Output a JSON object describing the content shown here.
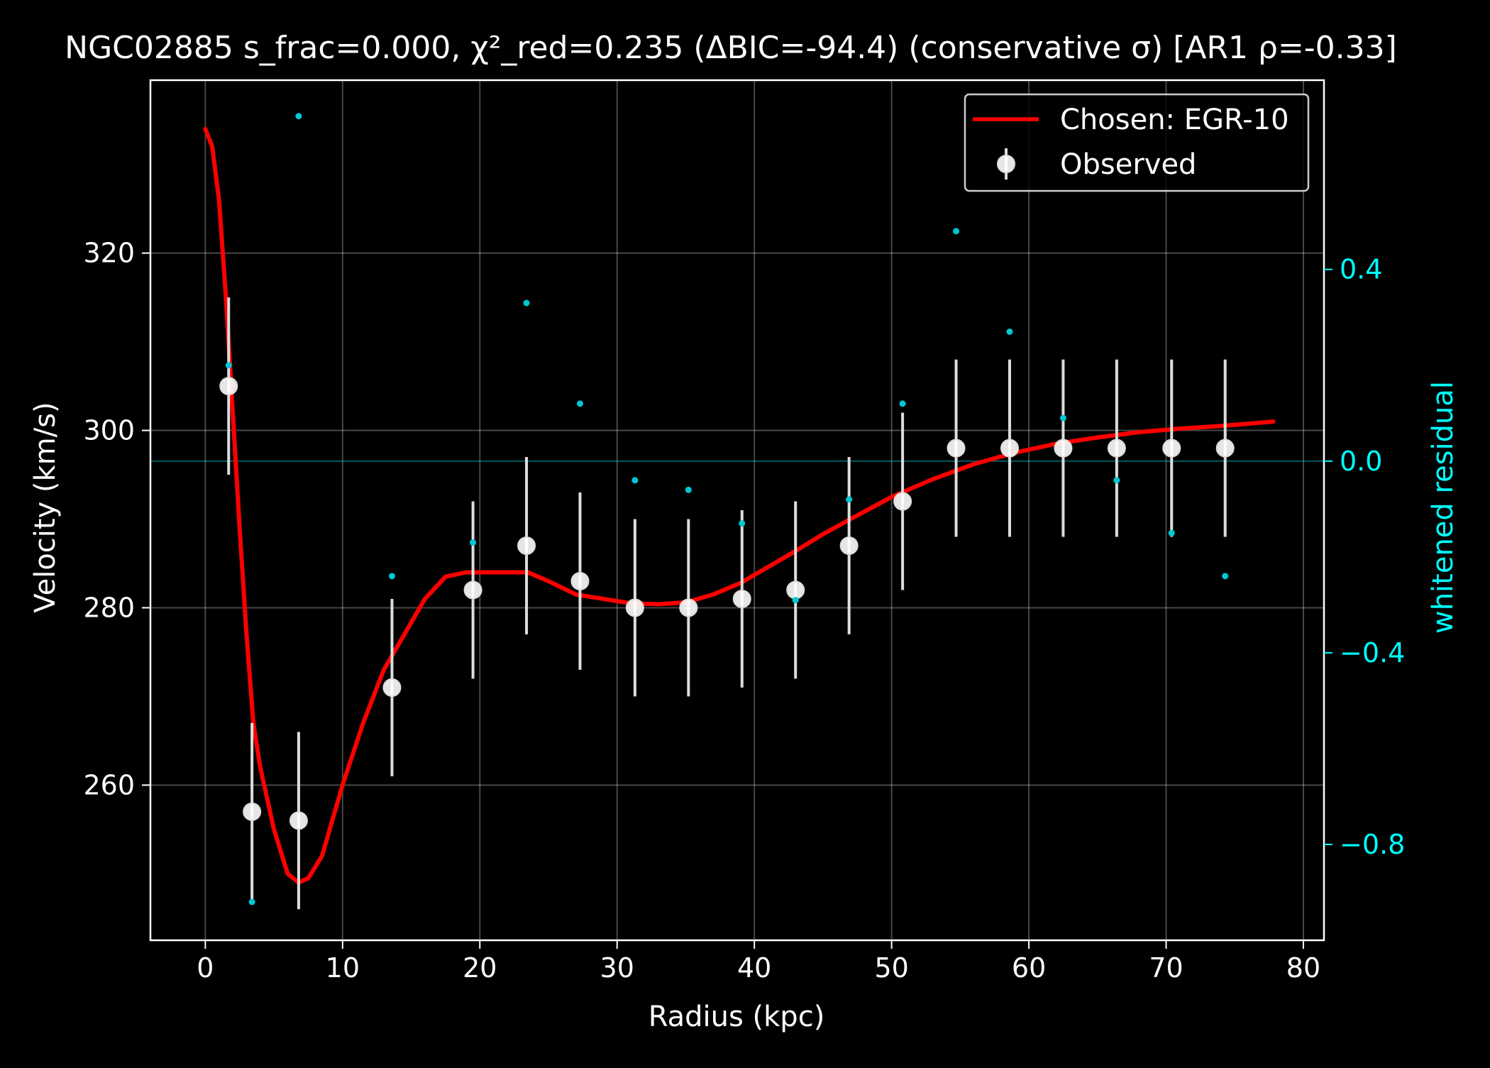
{
  "chart_data": {
    "type": "scatter",
    "title": "NGC02885  s_frac=0.000, χ²_red=0.235  (ΔBIC=-94.4) (conservative σ) [AR1 ρ=-0.33]",
    "xlabel": "Radius (kpc)",
    "ylabel": "Velocity (km/s)",
    "ylabel_right": "whitened residual",
    "xlim": [
      -4,
      81.5
    ],
    "ylim": [
      242.5,
      339.5
    ],
    "ylim_right": [
      -1.0,
      0.795
    ],
    "x_ticks": [
      0,
      10,
      20,
      30,
      40,
      50,
      60,
      70,
      80
    ],
    "y_ticks": [
      260,
      280,
      300,
      320
    ],
    "y_right_ticks": [
      0.4,
      0.0,
      -0.4,
      -0.8
    ],
    "y_right_tick_labels": [
      "0.4",
      "0.0",
      "−0.4",
      "−0.8"
    ],
    "grid": true,
    "legend_position": "top-right",
    "colors": {
      "background": "#000000",
      "foreground": "#ffffff",
      "model": "#ff0000",
      "observed": "#ffffff",
      "residual": "#00c8d2",
      "residual_axis": "#00ffff"
    },
    "legend": [
      {
        "label": "Chosen: EGR-10",
        "kind": "line"
      },
      {
        "label": "Observed",
        "kind": "errorbar"
      }
    ],
    "series": [
      {
        "name": "Observed",
        "kind": "errorbar",
        "x": [
          1.7,
          3.4,
          6.8,
          13.6,
          19.5,
          23.4,
          27.3,
          31.3,
          35.2,
          39.1,
          43.0,
          46.9,
          50.8,
          54.7,
          58.6,
          62.5,
          66.4,
          70.4,
          74.3
        ],
        "y": [
          305,
          257,
          256,
          271,
          282,
          287,
          283,
          280,
          280,
          281,
          282,
          287,
          292,
          298,
          298,
          298,
          298,
          298,
          298
        ],
        "yerr": [
          10,
          10,
          10,
          10,
          10,
          10,
          10,
          10,
          10,
          10,
          10,
          10,
          10,
          10,
          10,
          10,
          10,
          10,
          10
        ]
      },
      {
        "name": "Chosen: EGR-10",
        "kind": "line",
        "x": [
          0,
          0.5,
          1,
          1.5,
          2,
          2.5,
          3,
          3.5,
          4,
          5,
          6,
          6.8,
          7.5,
          8.5,
          10,
          11.5,
          13,
          14.5,
          16,
          17.5,
          19,
          20.5,
          22,
          23.5,
          25,
          27,
          29,
          31,
          33,
          35,
          37,
          39,
          41,
          43,
          45,
          47,
          50,
          53,
          56,
          59,
          62,
          65,
          68,
          71,
          74,
          77.8
        ],
        "y": [
          334,
          332,
          326,
          315,
          302,
          289,
          277,
          267,
          262,
          255,
          250,
          249,
          249.5,
          252,
          260,
          267,
          273,
          277,
          281,
          283.5,
          284,
          284,
          284,
          284,
          283,
          281.5,
          281,
          280.5,
          280.4,
          280.6,
          281.5,
          282.8,
          284.6,
          286.4,
          288.3,
          290,
          292.5,
          294.5,
          296.2,
          297.5,
          298.5,
          299.2,
          299.8,
          300.2,
          300.5,
          301
        ]
      },
      {
        "name": "whitened residual",
        "kind": "scatter",
        "axis": "right",
        "x": [
          1.7,
          3.4,
          6.8,
          13.6,
          19.5,
          23.4,
          27.3,
          31.3,
          35.2,
          39.1,
          43.0,
          46.9,
          50.8,
          54.7,
          58.6,
          62.5,
          66.4,
          70.4,
          74.3
        ],
        "y": [
          0.2,
          -0.92,
          0.72,
          -0.24,
          -0.17,
          0.33,
          0.12,
          -0.04,
          -0.06,
          -0.13,
          -0.29,
          -0.08,
          0.12,
          0.48,
          0.27,
          0.09,
          -0.04,
          -0.15,
          -0.24
        ]
      }
    ]
  }
}
